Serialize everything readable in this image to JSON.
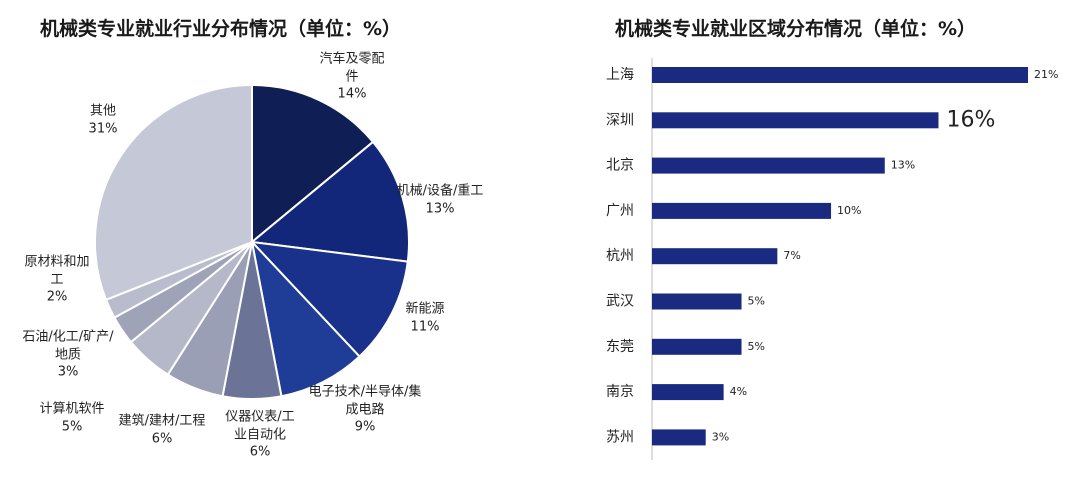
{
  "chart_data": [
    {
      "type": "pie",
      "title": "机械类专业就业行业分布情况（单位：%）",
      "categories": [
        "汽车及零配件",
        "机械/设备/重工",
        "新能源",
        "电子技术/半导体/集成电路",
        "仪器仪表/工业自动化",
        "建筑/建材/工程",
        "计算机软件",
        "石油/化工/矿产/地质",
        "原材料和加工",
        "其他"
      ],
      "values": [
        14,
        13,
        11,
        9,
        6,
        6,
        5,
        3,
        2,
        31
      ],
      "value_labels": [
        "14%",
        "13%",
        "11%",
        "9%",
        "6%",
        "6%",
        "5%",
        "3%",
        "2%",
        "31%"
      ],
      "colors": [
        "#0f1f56",
        "#13277a",
        "#19318a",
        "#1f3c96",
        "#6b7396",
        "#9a9fb6",
        "#b4b8c8",
        "#9fa3b8",
        "#b8bccc",
        "#c5c8d6"
      ]
    },
    {
      "type": "hbar",
      "title": "机械类专业就业区域分布情况（单位：%）",
      "categories": [
        "上海",
        "深圳",
        "北京",
        "广州",
        "杭州",
        "武汉",
        "东莞",
        "南京",
        "苏州"
      ],
      "values": [
        21,
        16,
        13,
        10,
        7,
        5,
        5,
        4,
        3
      ],
      "value_labels": [
        "21%",
        "16%",
        "13%",
        "10%",
        "7%",
        "5%",
        "5%",
        "4%",
        "3%"
      ],
      "color": "#1a2a80"
    }
  ]
}
